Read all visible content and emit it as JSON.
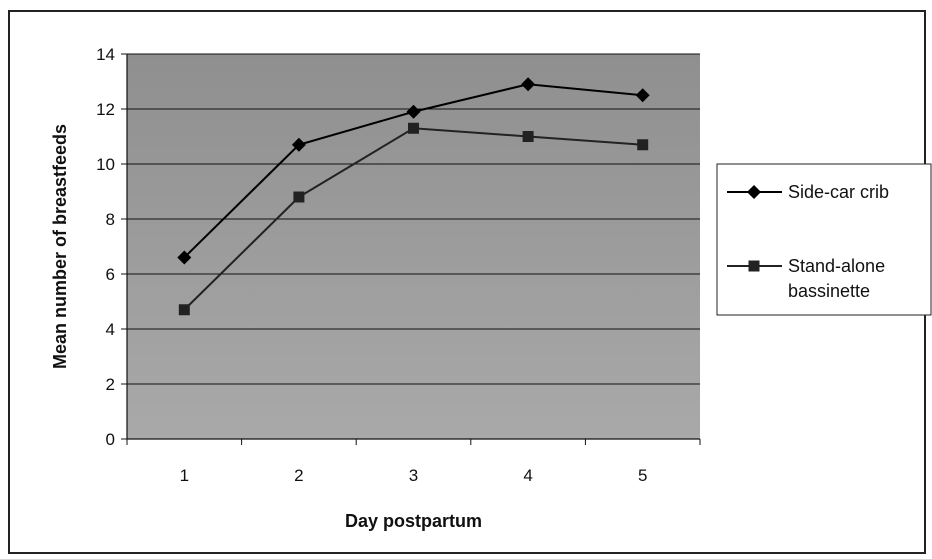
{
  "chart_data": {
    "type": "line",
    "categories": [
      "1",
      "2",
      "3",
      "4",
      "5"
    ],
    "series": [
      {
        "name": "Side-car crib",
        "values": [
          6.6,
          10.7,
          11.9,
          12.9,
          12.5
        ],
        "marker": "diamond",
        "color": "#000000"
      },
      {
        "name_lines": [
          "Stand-alone",
          "bassinette"
        ],
        "values": [
          4.7,
          8.8,
          11.3,
          11.0,
          10.7
        ],
        "marker": "square",
        "color": "#222222"
      }
    ],
    "title": "",
    "xlabel": "Day postpartum",
    "ylabel": "Mean number of breastfeeds",
    "ylim": [
      0,
      14
    ],
    "yticks": [
      "0",
      "2",
      "4",
      "6",
      "8",
      "10",
      "12",
      "14"
    ],
    "grid": true,
    "legend_position": "right",
    "plot_background": "#9a9a9a"
  }
}
